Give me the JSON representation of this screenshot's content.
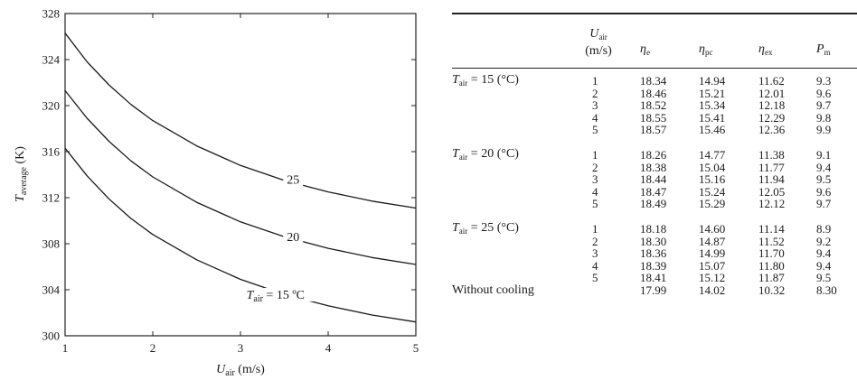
{
  "chart_data": {
    "type": "line",
    "xlabel": "U",
    "xlabel_sub": "air",
    "xlabel_unit": " (m/s)",
    "ylabel": "T",
    "ylabel_sub": "average",
    "ylabel_unit": " (K)",
    "xlim": [
      1,
      5
    ],
    "ylim": [
      300,
      328
    ],
    "xticks": [
      "1",
      "2",
      "3",
      "4",
      "5"
    ],
    "yticks": [
      "300",
      "304",
      "308",
      "312",
      "316",
      "320",
      "324",
      "328"
    ],
    "grid": false,
    "series": [
      {
        "name": "25",
        "x": [
          1.0,
          1.25,
          1.5,
          1.75,
          2.0,
          2.5,
          3.0,
          3.5,
          4.0,
          4.5,
          5.0
        ],
        "y": [
          326.3,
          323.8,
          321.8,
          320.1,
          318.7,
          316.5,
          314.8,
          313.5,
          312.5,
          311.7,
          311.1
        ]
      },
      {
        "name": "20",
        "x": [
          1.0,
          1.25,
          1.5,
          1.75,
          2.0,
          2.5,
          3.0,
          3.5,
          4.0,
          4.5,
          5.0
        ],
        "y": [
          321.3,
          318.9,
          316.9,
          315.2,
          313.8,
          311.6,
          309.9,
          308.6,
          307.6,
          306.8,
          306.2
        ]
      },
      {
        "name": "Tair = 15 ºC",
        "x": [
          1.0,
          1.25,
          1.5,
          1.75,
          2.0,
          2.5,
          3.0,
          3.5,
          4.0,
          4.5,
          5.0
        ],
        "y": [
          316.3,
          313.9,
          311.9,
          310.2,
          308.8,
          306.6,
          304.9,
          303.6,
          302.6,
          301.8,
          301.2
        ]
      }
    ],
    "curve_labels": [
      {
        "text": "25",
        "x": 3.6,
        "y": 313.3
      },
      {
        "text": "20",
        "x": 3.6,
        "y": 308.3
      },
      {
        "text_main": "T",
        "text_sub": "air",
        "text_rest": " = 15 ºC",
        "x": 3.4,
        "y": 303.3
      }
    ]
  },
  "table": {
    "headers": {
      "u_main": "U",
      "u_sub": "air",
      "u_unit": "(m/s)",
      "eta_e": "η",
      "eta_e_sub": "e",
      "eta_pc": "η",
      "eta_pc_sub": "pc",
      "eta_ex": "η",
      "eta_ex_sub": "ex",
      "p": "P",
      "p_sub": "m"
    },
    "groups": [
      {
        "label_main": "T",
        "label_sub": "air",
        "label_rest": " = 15 (°C)",
        "rows": [
          [
            "1",
            "18.34",
            "14.94",
            "11.62",
            "9.3"
          ],
          [
            "2",
            "18.46",
            "15.21",
            "12.01",
            "9.6"
          ],
          [
            "3",
            "18.52",
            "15.34",
            "12.18",
            "9.7"
          ],
          [
            "4",
            "18.55",
            "15.41",
            "12.29",
            "9.8"
          ],
          [
            "5",
            "18.57",
            "15.46",
            "12.36",
            "9.9"
          ]
        ]
      },
      {
        "label_main": "T",
        "label_sub": "air",
        "label_rest": " = 20 (°C)",
        "rows": [
          [
            "1",
            "18.26",
            "14.77",
            "11.38",
            "9.1"
          ],
          [
            "2",
            "18.38",
            "15.04",
            "11.77",
            "9.4"
          ],
          [
            "3",
            "18.44",
            "15.16",
            "11.94",
            "9.5"
          ],
          [
            "4",
            "18.47",
            "15.24",
            "12.05",
            "9.6"
          ],
          [
            "5",
            "18.49",
            "15.29",
            "12.12",
            "9.7"
          ]
        ]
      },
      {
        "label_main": "T",
        "label_sub": "air",
        "label_rest": " = 25 (°C)",
        "rows": [
          [
            "1",
            "18.18",
            "14.60",
            "11.14",
            "8.9"
          ],
          [
            "2",
            "18.30",
            "14.87",
            "11.52",
            "9.2"
          ],
          [
            "3",
            "18.36",
            "14.99",
            "11.70",
            "9.4"
          ],
          [
            "4",
            "18.39",
            "15.07",
            "11.80",
            "9.4"
          ],
          [
            "5",
            "18.41",
            "15.12",
            "11.87",
            "9.5"
          ]
        ]
      }
    ],
    "without_cooling": {
      "label": "Without cooling",
      "values": [
        "17.99",
        "14.02",
        "10.32",
        "8.30"
      ]
    }
  }
}
